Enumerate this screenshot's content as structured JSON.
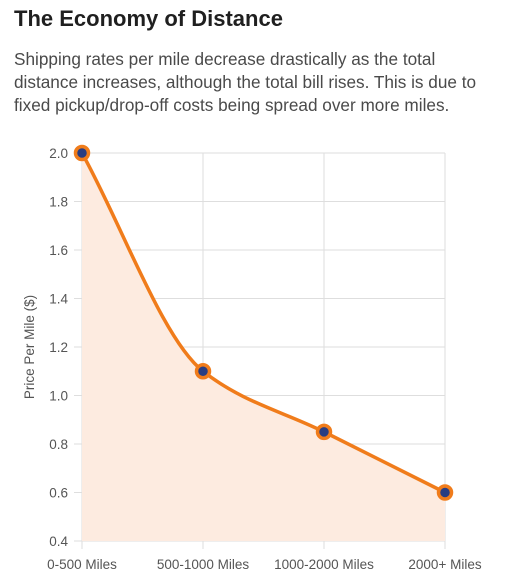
{
  "header": {
    "title": "The Economy of Distance",
    "description": "Shipping rates per mile decrease drastically as the total distance increases, although the total bill rises. This is due to fixed pickup/drop-off costs being spread over more miles."
  },
  "colors": {
    "line": "#f07c1b",
    "fill": "#fdebe0",
    "point": "#283d82",
    "grid": "#dedede"
  },
  "chart_data": {
    "type": "line",
    "categories": [
      "0-500 Miles",
      "500-1000 Miles",
      "1000-2000 Miles",
      "2000+ Miles"
    ],
    "values": [
      2.0,
      1.1,
      0.85,
      0.6
    ],
    "title": "",
    "xlabel": "",
    "ylabel": "Price Per Mile ($)",
    "ylim": [
      0.4,
      2.0
    ],
    "yticks": [
      "0.4",
      "0.6",
      "0.8",
      "1.0",
      "1.2",
      "1.4",
      "1.6",
      "1.8",
      "2.0"
    ],
    "area_fill": true,
    "grid": true,
    "legend": "none"
  }
}
